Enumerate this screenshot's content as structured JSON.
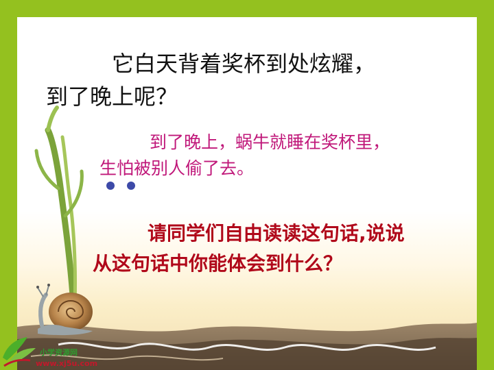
{
  "slide": {
    "frame_color": "#94c11f",
    "question_lines": [
      "它白天背着奖杯到处炫耀，",
      "到了晚上呢？"
    ],
    "answer_lines": [
      "到了晚上，蜗牛就睡在奖杯里，",
      "生怕被别人偷了去。"
    ],
    "prompt_lines": [
      "请同学们自由读读这句话,说说",
      "从这句话中你能体会到什么？"
    ],
    "illustration": "snail-with-plant-stem-icon",
    "watermark": {
      "site_name": "小学资源网",
      "url": "www.xj5u.com"
    }
  }
}
